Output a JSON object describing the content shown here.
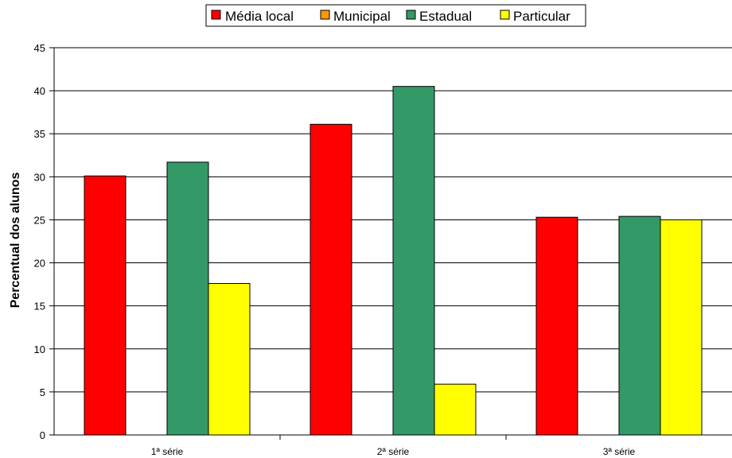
{
  "chart_data": {
    "type": "bar",
    "title": "",
    "xlabel": "",
    "ylabel": "Percentual dos alunos",
    "ylim": [
      0,
      45
    ],
    "yticks": [
      0,
      5,
      10,
      15,
      20,
      25,
      30,
      35,
      40,
      45
    ],
    "grid": true,
    "legend_position": "top-center",
    "categories": [
      "1ª série",
      "2ª série",
      "3ª série"
    ],
    "series": [
      {
        "name": "Média local",
        "color": "#ff0000",
        "values": [
          30.1,
          36.1,
          25.3
        ]
      },
      {
        "name": "Municipal",
        "color": "#ff9900",
        "values": [
          0,
          0,
          0
        ]
      },
      {
        "name": "Estadual",
        "color": "#339966",
        "values": [
          31.7,
          40.5,
          25.4
        ]
      },
      {
        "name": "Particular",
        "color": "#ffff00",
        "values": [
          17.6,
          5.9,
          25.0
        ]
      }
    ]
  }
}
